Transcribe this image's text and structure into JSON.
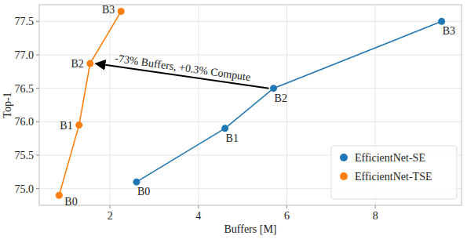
{
  "chart_data": {
    "type": "line",
    "x_label": "Buffers [M]",
    "y_label": "Top-1",
    "annotation": "-73% Buffers, +0.3% Compute",
    "xlim": [
      0.4,
      9.95
    ],
    "ylim": [
      74.75,
      77.75
    ],
    "xticks": [
      2,
      4,
      6,
      8
    ],
    "yticks": [
      {
        "value": 75,
        "label": "75.0"
      },
      75.5,
      {
        "value": 76,
        "label": "76.0"
      },
      76.5,
      {
        "value": 77,
        "label": "77.0"
      },
      77.5
    ],
    "grid": true,
    "legend": "lower right",
    "series": [
      {
        "name": "EfficientNet-SE",
        "color": "#1f77b4",
        "marker": "circle",
        "labels": [
          "B0",
          "B1",
          "B2",
          "B3"
        ],
        "x": [
          2.6,
          4.6,
          5.7,
          9.5
        ],
        "values": [
          75.1,
          75.9,
          76.5,
          77.5
        ]
      },
      {
        "name": "EfficientNet-TSE",
        "color": "#ff7f0e",
        "marker": "circle",
        "labels": [
          "B0",
          "B1",
          "B2",
          "B3"
        ],
        "x": [
          0.85,
          1.3,
          1.55,
          2.25
        ],
        "values": [
          74.9,
          75.95,
          76.87,
          77.65
        ]
      }
    ]
  }
}
